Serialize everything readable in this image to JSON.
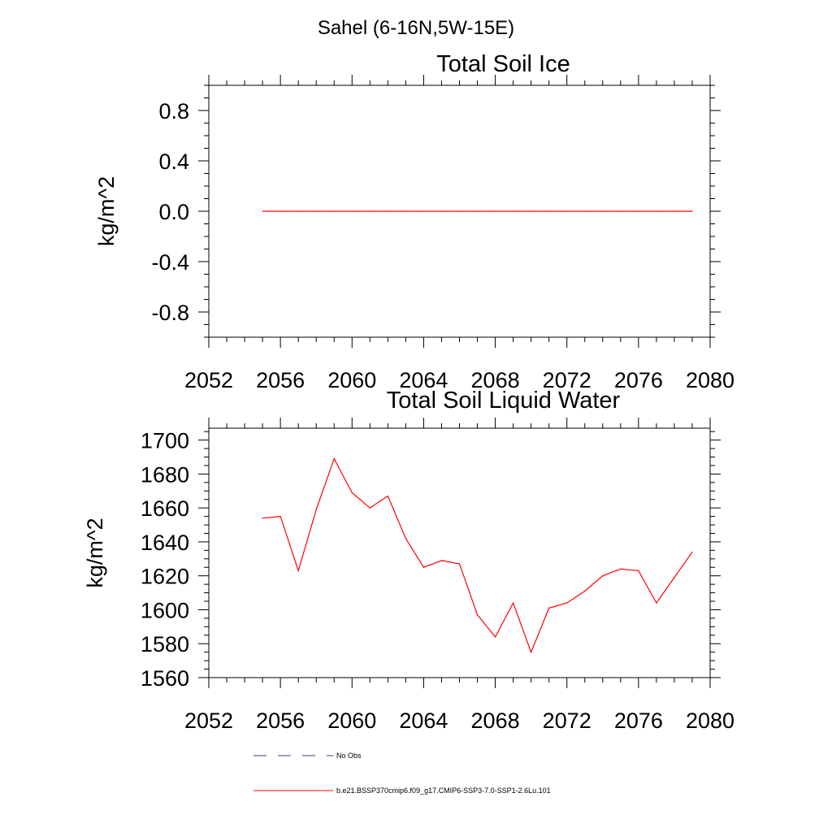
{
  "figure": {
    "suptitle": "Sahel (6-16N,5W-15E)"
  },
  "chart_data": [
    {
      "type": "line",
      "title": "Total Soil Ice",
      "xlabel": "",
      "ylabel": "kg/m^2",
      "xlim": [
        2052,
        2080
      ],
      "ylim": [
        -1.0,
        1.0
      ],
      "xticks": [
        2052,
        2056,
        2060,
        2064,
        2068,
        2072,
        2076,
        2080
      ],
      "yticks": [
        -0.8,
        -0.4,
        0.0,
        0.4,
        0.8
      ],
      "ytick_labels": [
        "-0.8",
        "-0.4",
        "0.0",
        "0.4",
        "0.8"
      ],
      "grid": false,
      "series": [
        {
          "color": "#ff0000",
          "x": [
            2055,
            2056,
            2057,
            2058,
            2059,
            2060,
            2061,
            2062,
            2063,
            2064,
            2065,
            2066,
            2067,
            2068,
            2069,
            2070,
            2071,
            2072,
            2073,
            2074,
            2075,
            2076,
            2077,
            2078,
            2079
          ],
          "y": [
            0,
            0,
            0,
            0,
            0,
            0,
            0,
            0,
            0,
            0,
            0,
            0,
            0,
            0,
            0,
            0,
            0,
            0,
            0,
            0,
            0,
            0,
            0,
            0,
            0
          ]
        }
      ]
    },
    {
      "type": "line",
      "title": "Total Soil Liquid Water",
      "xlabel": "",
      "ylabel": "kg/m^2",
      "xlim": [
        2052,
        2080
      ],
      "ylim": [
        1560,
        1707
      ],
      "xticks": [
        2052,
        2056,
        2060,
        2064,
        2068,
        2072,
        2076,
        2080
      ],
      "yticks": [
        1560,
        1580,
        1600,
        1620,
        1640,
        1660,
        1680,
        1700
      ],
      "ytick_labels": [
        "1560",
        "1580",
        "1600",
        "1620",
        "1640",
        "1660",
        "1680",
        "1700"
      ],
      "grid": false,
      "series": [
        {
          "color": "#ff0000",
          "x": [
            2055,
            2056,
            2057,
            2058,
            2059,
            2060,
            2061,
            2062,
            2063,
            2064,
            2065,
            2066,
            2067,
            2068,
            2069,
            2070,
            2071,
            2072,
            2073,
            2074,
            2075,
            2076,
            2077,
            2078,
            2079
          ],
          "y": [
            1654,
            1655,
            1623,
            1659,
            1689,
            1669,
            1660,
            1667,
            1642,
            1625,
            1629,
            1627,
            1597,
            1584,
            1604,
            1575,
            1601,
            1604,
            1611,
            1620,
            1624,
            1623,
            1604,
            1619,
            1634
          ]
        }
      ]
    }
  ],
  "legend": {
    "placement": "bottom",
    "items": [
      {
        "label": "No Obs",
        "color": "#3b3b8f",
        "style": "dashed"
      },
      {
        "label": "b.e21.BSSP370cmip6.f09_g17.CMIP6-SSP3-7.0-SSP1-2.6Lu.101",
        "color": "#ff0000",
        "style": "solid"
      }
    ]
  }
}
